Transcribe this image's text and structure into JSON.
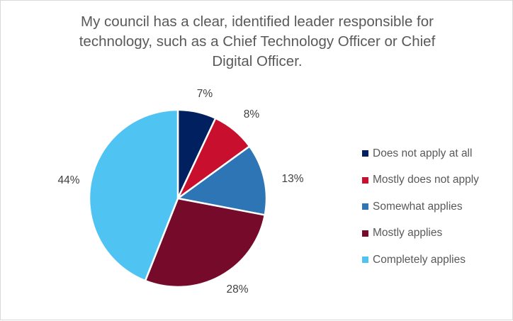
{
  "chart_data": {
    "type": "pie",
    "title_lines": [
      "My council has a clear, identified leader responsible for",
      "technology, such as a Chief Technology Officer or Chief",
      "Digital Officer."
    ],
    "categories": [
      "Does not apply at all",
      "Mostly does not apply",
      "Somewhat applies",
      "Mostly applies",
      "Completely applies"
    ],
    "values": [
      7,
      8,
      13,
      28,
      44
    ],
    "data_labels": [
      "7%",
      "8%",
      "13%",
      "28%",
      "44%"
    ],
    "colors": [
      "#002060",
      "#C8102E",
      "#2E75B6",
      "#760A2B",
      "#4FC3F2"
    ],
    "start_angle": "12 o'clock",
    "direction": "clockwise",
    "legend_position": "right"
  }
}
